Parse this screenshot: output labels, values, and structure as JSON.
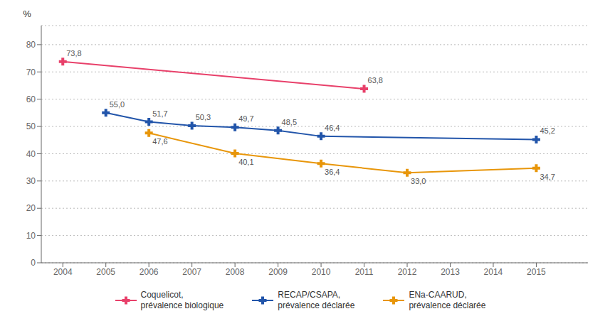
{
  "chart_data": {
    "type": "line",
    "ylabel": "%",
    "xlim": [
      2003.5,
      2016.2
    ],
    "ylim": [
      0,
      87
    ],
    "xticks": [
      2004,
      2005,
      2006,
      2007,
      2008,
      2009,
      2010,
      2011,
      2012,
      2013,
      2014,
      2015
    ],
    "yticks": [
      0,
      10,
      20,
      30,
      40,
      50,
      60,
      70,
      80
    ],
    "grid": true,
    "data_labels": true,
    "series": [
      {
        "name": "Coquelicot,\nprévalence biologique",
        "color": "#e8406a",
        "marker": "plus",
        "x": [
          2004,
          2011
        ],
        "values": [
          73.8,
          63.8
        ],
        "value_labels": [
          "73,8",
          "63,8"
        ]
      },
      {
        "name": "RECAP/CSAPA,\nprévalence déclarée",
        "color": "#2255aa",
        "marker": "plus",
        "x": [
          2005,
          2006,
          2007,
          2008,
          2009,
          2010,
          2015
        ],
        "values": [
          55.0,
          51.7,
          50.3,
          49.7,
          48.5,
          46.4,
          45.2
        ],
        "value_labels": [
          "55,0",
          "51,7",
          "50,3",
          "49,7",
          "48,5",
          "46,4",
          "45,2"
        ]
      },
      {
        "name": "ENa-CAARUD,\nprévalence déclarée",
        "color": "#e8960a",
        "marker": "plus",
        "x": [
          2006,
          2008,
          2010,
          2012,
          2015
        ],
        "values": [
          47.6,
          40.1,
          36.4,
          33.0,
          34.7
        ],
        "value_labels": [
          "47,6",
          "40,1",
          "36,4",
          "33,0",
          "34,7"
        ]
      }
    ]
  }
}
